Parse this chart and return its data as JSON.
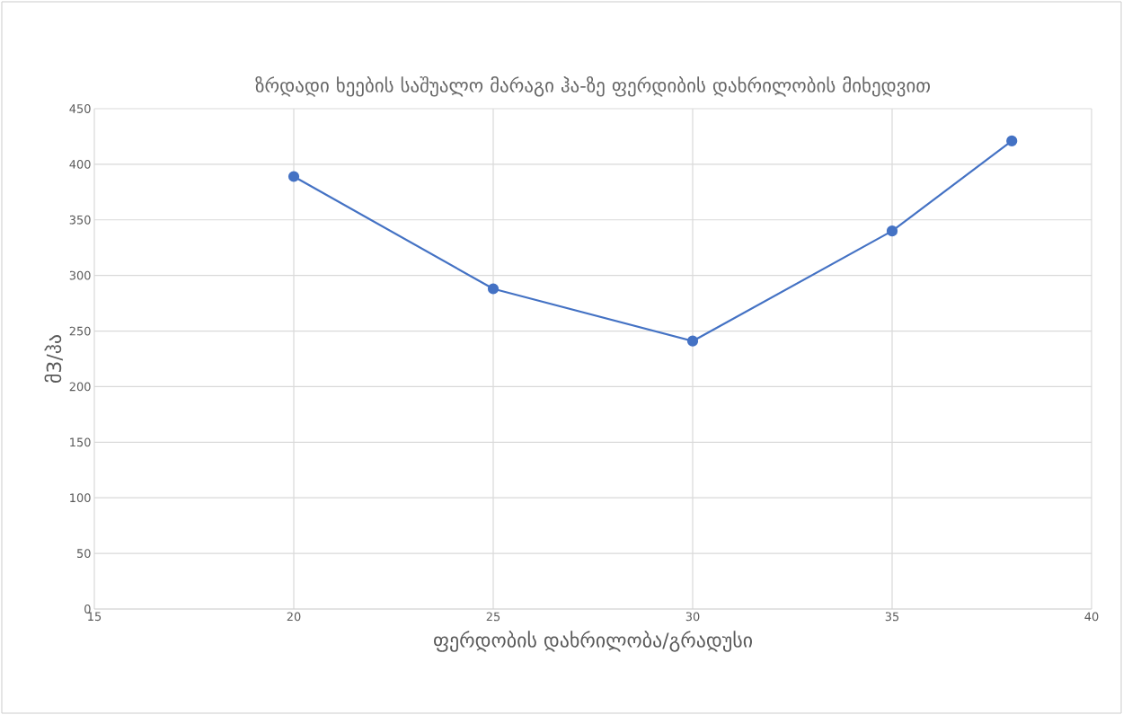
{
  "chart_data": {
    "type": "line",
    "title": "ზრდადი ხეების საშუალო მარაგი ჰა-ზე ფერდიბის დახრილობის მიხედვით",
    "xlabel": "ფერდობის დახრილობა/გრადუსი",
    "ylabel": "მ3/ჰა",
    "x": [
      20,
      25,
      30,
      35,
      38
    ],
    "series": [
      {
        "color": "#4472c4",
        "values": [
          389,
          288,
          241,
          340,
          421
        ]
      }
    ],
    "xlim": [
      15,
      40
    ],
    "xticks": [
      15,
      20,
      25,
      30,
      35,
      40
    ],
    "ylim": [
      0,
      450
    ],
    "yticks": [
      0,
      50,
      100,
      150,
      200,
      250,
      300,
      350,
      400,
      450
    ],
    "grid": true,
    "marker": "circle",
    "line_style": "solid"
  }
}
